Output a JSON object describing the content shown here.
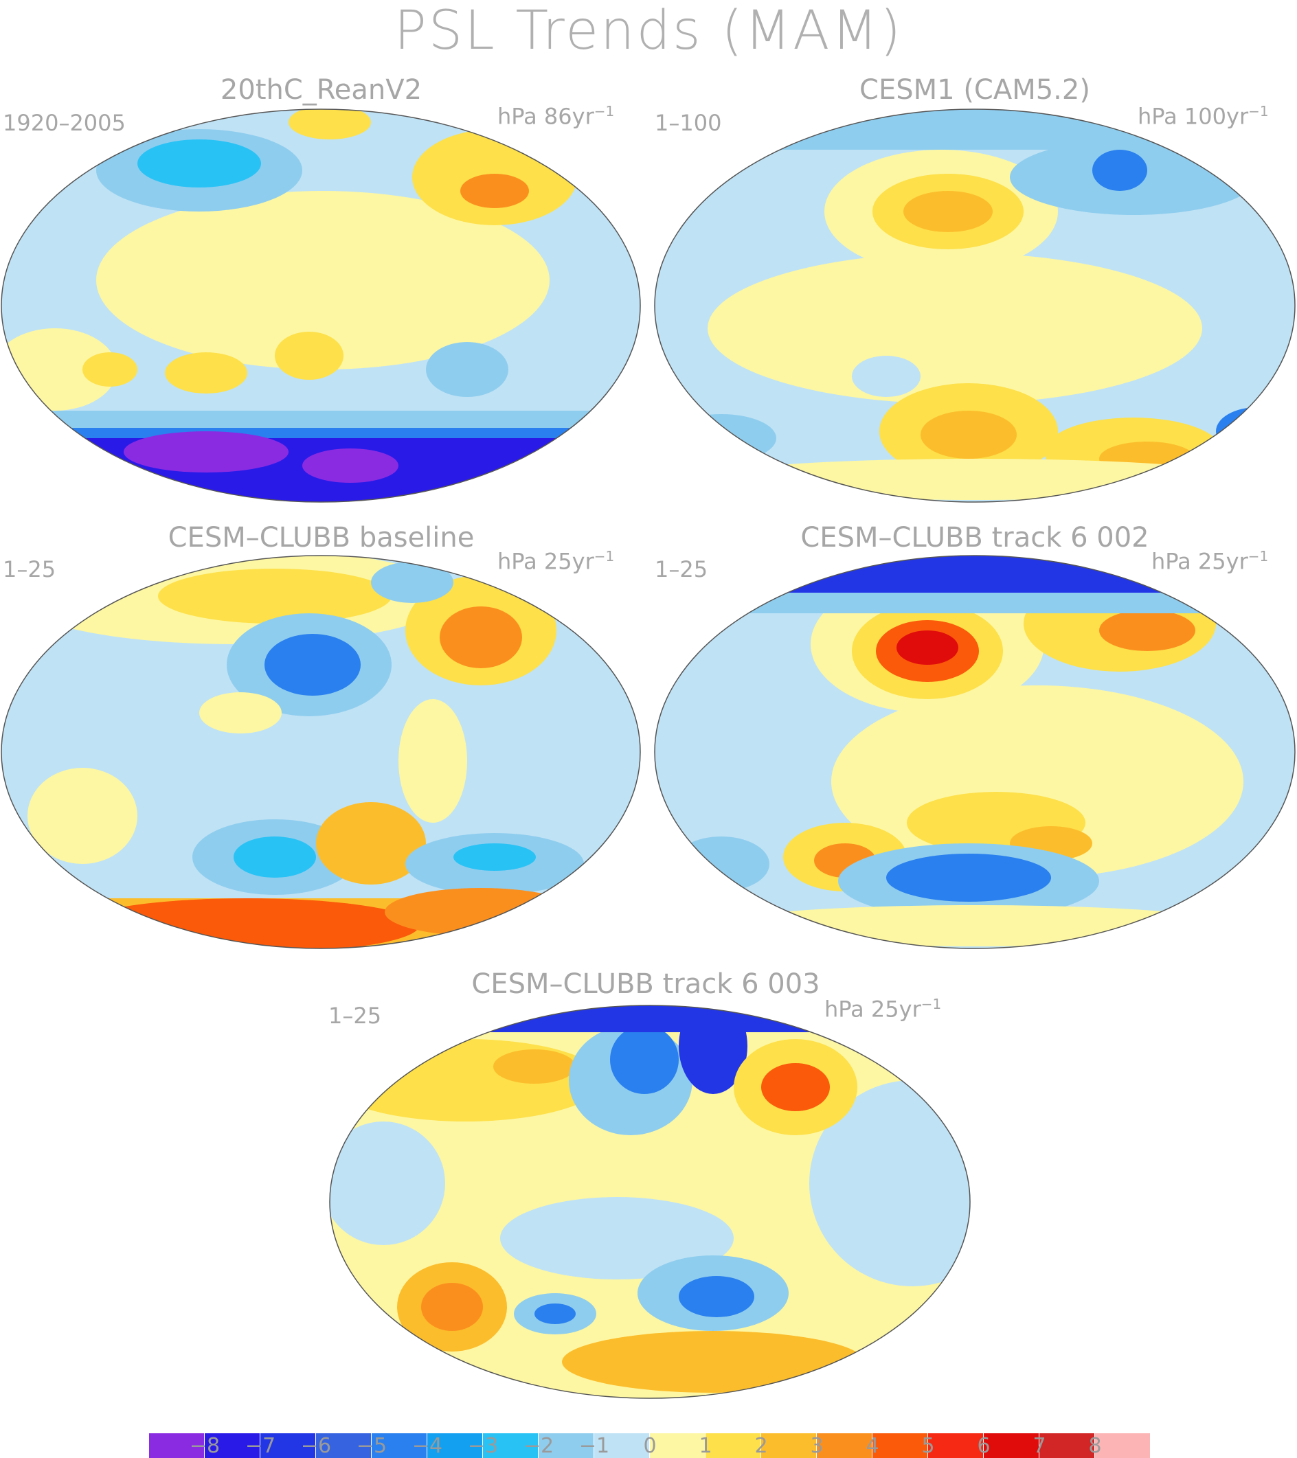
{
  "figure": {
    "title": "PSL Trends (MAM)"
  },
  "panels": [
    {
      "name": "20thC_ReanV2",
      "period": "1920–2005",
      "units": "hPa 86yr",
      "units_exp": "−1"
    },
    {
      "name": "CESM1 (CAM5.2)",
      "period": "1–100",
      "units": "hPa 100yr",
      "units_exp": "−1"
    },
    {
      "name": "CESM–CLUBB baseline",
      "period": "1–25",
      "units": "hPa 25yr",
      "units_exp": "−1"
    },
    {
      "name": "CESM–CLUBB track 6 002",
      "period": "1–25",
      "units": "hPa 25yr",
      "units_exp": "−1"
    },
    {
      "name": "CESM–CLUBB track 6 003",
      "period": "1–25",
      "units": "hPa 25yr",
      "units_exp": "−1"
    }
  ],
  "colorbar": {
    "colors": [
      "#8a2be2",
      "#2a1ae8",
      "#2336e6",
      "#3663e0",
      "#2a80ee",
      "#14a0f0",
      "#29c2f5",
      "#8fcdee",
      "#bfe2f5",
      "#fdf7a3",
      "#fde04a",
      "#fcbd2c",
      "#fb8f1e",
      "#fa5a0a",
      "#f62a14",
      "#e00c0c",
      "#d22626",
      "#fdb4b4"
    ],
    "tick_labels": [
      "−8",
      "−7",
      "−6",
      "−5",
      "−4",
      "−3",
      "−2",
      "−1",
      "0",
      "1",
      "2",
      "3",
      "4",
      "5",
      "6",
      "7",
      "8"
    ]
  }
}
